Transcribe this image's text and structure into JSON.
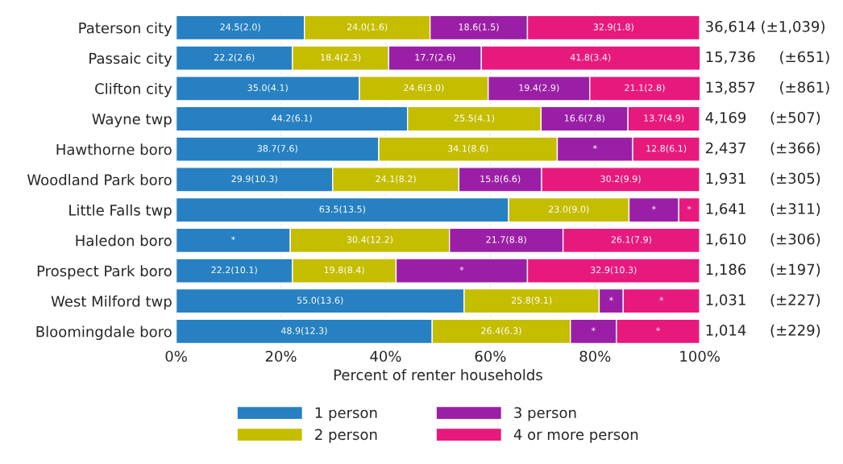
{
  "chart_data": {
    "type": "bar",
    "orientation": "horizontal",
    "stacked": true,
    "categories": [
      "Paterson city",
      "Passaic city",
      "Clifton city",
      "Wayne twp",
      "Hawthorne boro",
      "Woodland Park boro",
      "Little Falls twp",
      "Haledon boro",
      "Prospect Park boro",
      "West Milford twp",
      "Bloomingdale boro"
    ],
    "series": [
      {
        "name": "1 person",
        "color": "#2680c2",
        "values": [
          24.5,
          22.2,
          35.0,
          44.2,
          38.7,
          29.9,
          63.5,
          21.8,
          22.2,
          55.0,
          48.9
        ],
        "value_labels": [
          "24.5(2.0)",
          "22.2(2.6)",
          "35.0(4.1)",
          "44.2(6.1)",
          "38.7(7.6)",
          "29.9(10.3)",
          "63.5(13.5)",
          "*",
          "22.2(10.1)",
          "55.0(13.6)",
          "48.9(12.3)"
        ]
      },
      {
        "name": "2 person",
        "color": "#c5bd00",
        "values": [
          24.0,
          18.4,
          24.6,
          25.5,
          34.1,
          24.1,
          23.0,
          30.4,
          19.8,
          25.8,
          26.4
        ],
        "value_labels": [
          "24.0(1.6)",
          "18.4(2.3)",
          "24.6(3.0)",
          "25.5(4.1)",
          "34.1(8.6)",
          "24.1(8.2)",
          "23.0(9.0)",
          "30.4(12.2)",
          "19.8(8.4)",
          "25.8(9.1)",
          "26.4(6.3)"
        ]
      },
      {
        "name": "3 person",
        "color": "#9b1fa6",
        "values": [
          18.6,
          17.7,
          19.4,
          16.6,
          14.4,
          15.8,
          9.5,
          21.7,
          25.1,
          4.6,
          8.8
        ],
        "value_labels": [
          "18.6(1.5)",
          "17.7(2.6)",
          "19.4(2.9)",
          "16.6(7.8)",
          "*",
          "15.8(6.6)",
          "*",
          "21.7(8.8)",
          "*",
          "*",
          "*"
        ]
      },
      {
        "name": "4 or more person",
        "color": "#e8197c",
        "values": [
          32.9,
          41.8,
          21.1,
          13.7,
          12.8,
          30.2,
          4.0,
          26.1,
          32.9,
          14.6,
          15.9
        ],
        "value_labels": [
          "32.9(1.8)",
          "41.8(3.4)",
          "21.1(2.8)",
          "13.7(4.9)",
          "12.8(6.1)",
          "30.2(9.9)",
          "*",
          "26.1(7.9)",
          "32.9(10.3)",
          "*",
          "*"
        ]
      }
    ],
    "xlabel": "Percent of renter households",
    "xlim": [
      0,
      100
    ],
    "xticks": [
      {
        "value": 0,
        "label": "0%"
      },
      {
        "value": 20,
        "label": "20%"
      },
      {
        "value": 40,
        "label": "40%"
      },
      {
        "value": 60,
        "label": "60%"
      },
      {
        "value": 80,
        "label": "80%"
      },
      {
        "value": 100,
        "label": "100%"
      }
    ],
    "annotations": [
      "36,614 (±1,039)",
      "15,736     (±651)",
      "13,857     (±861)",
      "4,169     (±507)",
      "2,437     (±366)",
      "1,931     (±305)",
      "1,641     (±311)",
      "1,610     (±306)",
      "1,186     (±197)",
      "1,031     (±227)",
      "1,014     (±229)"
    ],
    "grid": "x",
    "legend": "bottom"
  }
}
